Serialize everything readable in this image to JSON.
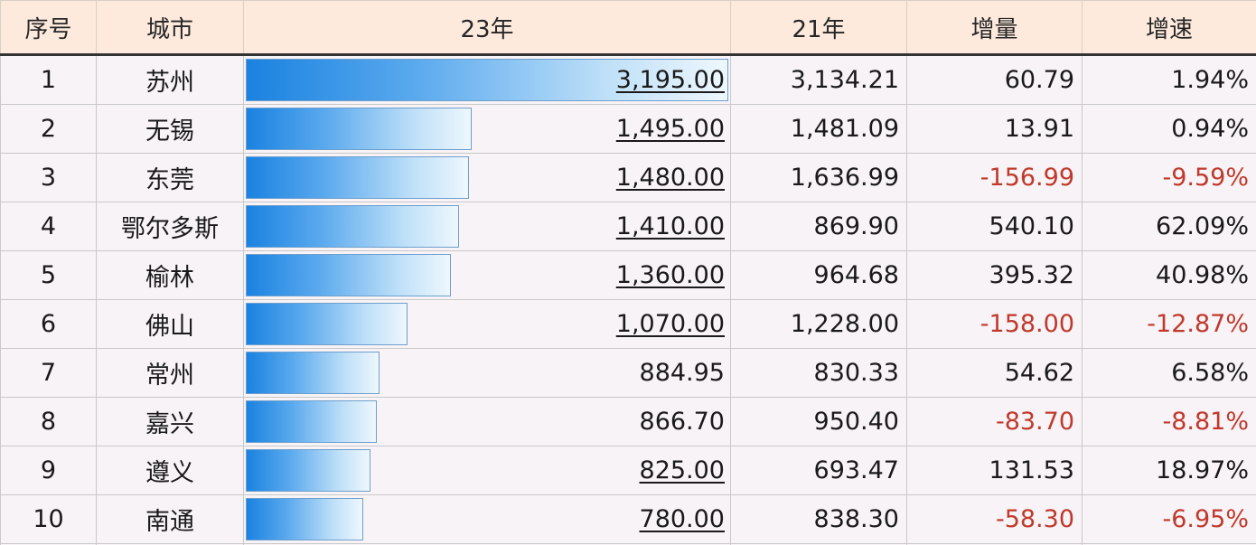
{
  "headers": {
    "index": "序号",
    "city": "城市",
    "y23": "23年",
    "y21": "21年",
    "delta": "增量",
    "rate": "增速"
  },
  "bar_max": 3195,
  "colors": {
    "negative": "#c0392b",
    "header_bg": "#fdeadd",
    "bar": "#1a82e0"
  },
  "rows": [
    {
      "index": "1",
      "city": "苏州",
      "y23": "3,195.00",
      "y23_value": 3195,
      "y23_underlined": true,
      "y21": "3,134.21",
      "delta": "60.79",
      "rate": "1.94%",
      "negative": false
    },
    {
      "index": "2",
      "city": "无锡",
      "y23": "1,495.00",
      "y23_value": 1495,
      "y23_underlined": true,
      "y21": "1,481.09",
      "delta": "13.91",
      "rate": "0.94%",
      "negative": false
    },
    {
      "index": "3",
      "city": "东莞",
      "y23": "1,480.00",
      "y23_value": 1480,
      "y23_underlined": true,
      "y21": "1,636.99",
      "delta": "-156.99",
      "rate": "-9.59%",
      "negative": true
    },
    {
      "index": "4",
      "city": "鄂尔多斯",
      "y23": "1,410.00",
      "y23_value": 1410,
      "y23_underlined": true,
      "y21": "869.90",
      "delta": "540.10",
      "rate": "62.09%",
      "negative": false
    },
    {
      "index": "5",
      "city": "榆林",
      "y23": "1,360.00",
      "y23_value": 1360,
      "y23_underlined": true,
      "y21": "964.68",
      "delta": "395.32",
      "rate": "40.98%",
      "negative": false
    },
    {
      "index": "6",
      "city": "佛山",
      "y23": "1,070.00",
      "y23_value": 1070,
      "y23_underlined": true,
      "y21": "1,228.00",
      "delta": "-158.00",
      "rate": "-12.87%",
      "negative": true
    },
    {
      "index": "7",
      "city": "常州",
      "y23": "884.95",
      "y23_value": 884.95,
      "y23_underlined": false,
      "y21": "830.33",
      "delta": "54.62",
      "rate": "6.58%",
      "negative": false
    },
    {
      "index": "8",
      "city": "嘉兴",
      "y23": "866.70",
      "y23_value": 866.7,
      "y23_underlined": false,
      "y21": "950.40",
      "delta": "-83.70",
      "rate": "-8.81%",
      "negative": true
    },
    {
      "index": "9",
      "city": "遵义",
      "y23": "825.00",
      "y23_value": 825,
      "y23_underlined": true,
      "y21": "693.47",
      "delta": "131.53",
      "rate": "18.97%",
      "negative": false
    },
    {
      "index": "10",
      "city": "南通",
      "y23": "780.00",
      "y23_value": 780,
      "y23_underlined": true,
      "y21": "838.30",
      "delta": "-58.30",
      "rate": "-6.95%",
      "negative": true
    }
  ]
}
